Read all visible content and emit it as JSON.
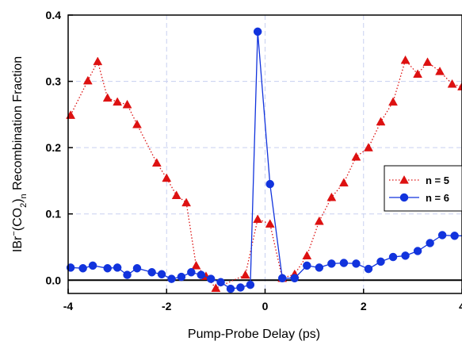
{
  "chart_data": {
    "type": "line",
    "xlabel": "Pump-Probe Delay (ps)",
    "ylabel_prefix": "IBr",
    "ylabel_sup": "−",
    "ylabel_mid": "(CO",
    "ylabel_sub2": "2",
    "ylabel_close": ")",
    "ylabel_subn": "n",
    "ylabel_suffix": " Recombination Fraction",
    "xlim": [
      -4,
      4
    ],
    "ylim": [
      -0.02,
      0.4
    ],
    "xticks": [
      -4,
      -2,
      0,
      2,
      4
    ],
    "xtick_labels": [
      "-4",
      "-2",
      "0",
      "2",
      "4"
    ],
    "yticks": [
      0.0,
      0.1,
      0.2,
      0.3,
      0.4
    ],
    "ytick_labels": [
      "0.0",
      "0.1",
      "0.2",
      "0.3",
      "0.4"
    ],
    "grid": true,
    "legend_position": "right",
    "series": [
      {
        "name": "n = 5",
        "color": "#dd1111",
        "marker": "triangle",
        "line_style": "dotted",
        "points": [
          [
            -3.95,
            0.249
          ],
          [
            -3.6,
            0.301
          ],
          [
            -3.4,
            0.33
          ],
          [
            -3.2,
            0.275
          ],
          [
            -3.0,
            0.269
          ],
          [
            -2.8,
            0.265
          ],
          [
            -2.6,
            0.235
          ],
          [
            -2.2,
            0.177
          ],
          [
            -2.0,
            0.154
          ],
          [
            -1.8,
            0.128
          ],
          [
            -1.6,
            0.117
          ],
          [
            -1.4,
            0.022
          ],
          [
            -1.2,
            0.006
          ],
          [
            -1.0,
            -0.012
          ],
          [
            -0.4,
            0.008
          ],
          [
            -0.15,
            0.092
          ],
          [
            0.1,
            0.085
          ],
          [
            0.35,
            0.003
          ],
          [
            0.6,
            0.009
          ],
          [
            0.85,
            0.037
          ],
          [
            1.1,
            0.089
          ],
          [
            1.35,
            0.125
          ],
          [
            1.6,
            0.147
          ],
          [
            1.85,
            0.186
          ],
          [
            2.1,
            0.2
          ],
          [
            2.35,
            0.239
          ],
          [
            2.6,
            0.269
          ],
          [
            2.85,
            0.332
          ],
          [
            3.1,
            0.311
          ],
          [
            3.3,
            0.329
          ],
          [
            3.55,
            0.315
          ],
          [
            3.8,
            0.296
          ],
          [
            4.0,
            0.292
          ]
        ]
      },
      {
        "name": "n = 6",
        "color": "#1133dd",
        "marker": "circle",
        "line_style": "solid",
        "points": [
          [
            -3.95,
            0.019
          ],
          [
            -3.7,
            0.018
          ],
          [
            -3.5,
            0.022
          ],
          [
            -3.2,
            0.018
          ],
          [
            -3.0,
            0.019
          ],
          [
            -2.8,
            0.008
          ],
          [
            -2.6,
            0.018
          ],
          [
            -2.3,
            0.012
          ],
          [
            -2.1,
            0.009
          ],
          [
            -1.9,
            0.002
          ],
          [
            -1.7,
            0.005
          ],
          [
            -1.5,
            0.012
          ],
          [
            -1.3,
            0.008
          ],
          [
            -1.1,
            0.002
          ],
          [
            -0.9,
            -0.003
          ],
          [
            -0.7,
            -0.013
          ],
          [
            -0.5,
            -0.011
          ],
          [
            -0.3,
            -0.007
          ],
          [
            -0.15,
            0.375
          ],
          [
            0.1,
            0.145
          ],
          [
            0.35,
            0.003
          ],
          [
            0.6,
            0.003
          ],
          [
            0.85,
            0.022
          ],
          [
            1.1,
            0.019
          ],
          [
            1.35,
            0.025
          ],
          [
            1.6,
            0.026
          ],
          [
            1.85,
            0.025
          ],
          [
            2.1,
            0.017
          ],
          [
            2.35,
            0.028
          ],
          [
            2.6,
            0.035
          ],
          [
            2.85,
            0.037
          ],
          [
            3.1,
            0.044
          ],
          [
            3.35,
            0.056
          ],
          [
            3.6,
            0.068
          ],
          [
            3.85,
            0.067
          ],
          [
            4.1,
            0.067
          ]
        ]
      }
    ]
  }
}
